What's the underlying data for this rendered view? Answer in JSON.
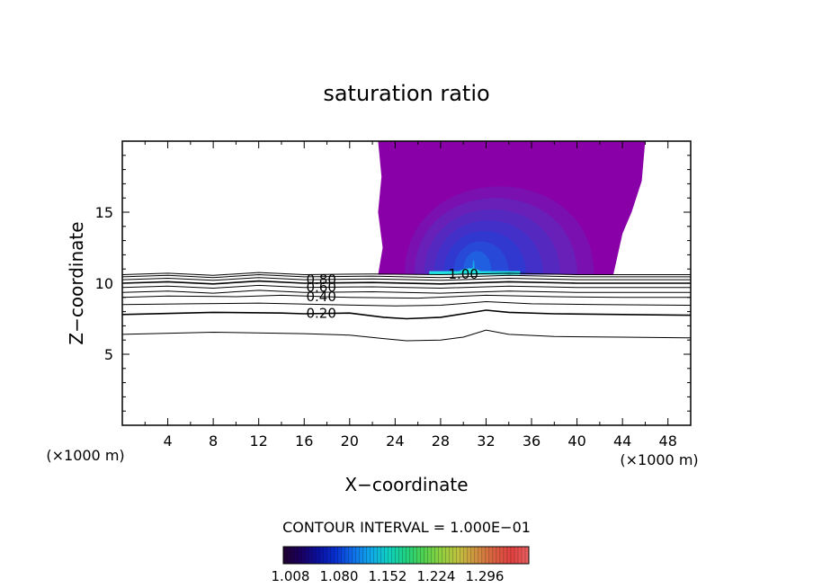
{
  "chart_data": {
    "type": "contour",
    "title": "saturation ratio",
    "xlabel": "X−coordinate",
    "ylabel": "Z−coordinate",
    "x_units_label": "(×1000 m)",
    "y_units_label": "(×1000 m)",
    "xlim": [
      0,
      50
    ],
    "ylim": [
      0,
      20
    ],
    "x_ticks": [
      4,
      8,
      12,
      16,
      20,
      24,
      28,
      32,
      36,
      40,
      44,
      48
    ],
    "y_ticks": [
      5,
      10,
      15
    ],
    "contour_interval_text": "CONTOUR INTERVAL = 1.000E−01",
    "contour_lines": [
      {
        "level": 0.1,
        "label": "",
        "points": [
          [
            0,
            6.4
          ],
          [
            8,
            6.55
          ],
          [
            16,
            6.45
          ],
          [
            20,
            6.35
          ],
          [
            23,
            6.1
          ],
          [
            25,
            5.95
          ],
          [
            28,
            6.0
          ],
          [
            30,
            6.2
          ],
          [
            32,
            6.7
          ],
          [
            34,
            6.4
          ],
          [
            38,
            6.25
          ],
          [
            44,
            6.2
          ],
          [
            50,
            6.15
          ]
        ]
      },
      {
        "level": 0.2,
        "label": "0.20",
        "points": [
          [
            0,
            7.8
          ],
          [
            8,
            7.95
          ],
          [
            14,
            7.9
          ],
          [
            16,
            7.85
          ],
          [
            20,
            7.9
          ],
          [
            23,
            7.6
          ],
          [
            25,
            7.5
          ],
          [
            28,
            7.6
          ],
          [
            30,
            7.85
          ],
          [
            32,
            8.1
          ],
          [
            34,
            7.95
          ],
          [
            38,
            7.85
          ],
          [
            44,
            7.8
          ],
          [
            50,
            7.75
          ]
        ]
      },
      {
        "level": 0.3,
        "label": "",
        "points": [
          [
            0,
            8.5
          ],
          [
            6,
            8.55
          ],
          [
            12,
            8.6
          ],
          [
            18,
            8.5
          ],
          [
            24,
            8.4
          ],
          [
            28,
            8.45
          ],
          [
            32,
            8.7
          ],
          [
            36,
            8.55
          ],
          [
            42,
            8.5
          ],
          [
            50,
            8.45
          ]
        ]
      },
      {
        "level": 0.4,
        "label": "0.40",
        "points": [
          [
            0,
            9.0
          ],
          [
            4,
            9.1
          ],
          [
            10,
            9.05
          ],
          [
            14,
            9.15
          ],
          [
            20,
            9.0
          ],
          [
            26,
            8.95
          ],
          [
            32,
            9.15
          ],
          [
            38,
            9.05
          ],
          [
            44,
            9.0
          ],
          [
            50,
            9.0
          ]
        ]
      },
      {
        "level": 0.5,
        "label": "",
        "points": [
          [
            0,
            9.35
          ],
          [
            4,
            9.45
          ],
          [
            8,
            9.3
          ],
          [
            12,
            9.5
          ],
          [
            16,
            9.35
          ],
          [
            22,
            9.4
          ],
          [
            28,
            9.3
          ],
          [
            34,
            9.45
          ],
          [
            40,
            9.35
          ],
          [
            50,
            9.35
          ]
        ]
      },
      {
        "level": 0.6,
        "label": "0.60",
        "points": [
          [
            0,
            9.7
          ],
          [
            4,
            9.8
          ],
          [
            8,
            9.65
          ],
          [
            12,
            9.85
          ],
          [
            16,
            9.7
          ],
          [
            22,
            9.75
          ],
          [
            28,
            9.65
          ],
          [
            34,
            9.8
          ],
          [
            40,
            9.7
          ],
          [
            50,
            9.7
          ]
        ]
      },
      {
        "level": 0.7,
        "label": "",
        "points": [
          [
            0,
            10.0
          ],
          [
            4,
            10.1
          ],
          [
            8,
            9.95
          ],
          [
            12,
            10.15
          ],
          [
            16,
            10.0
          ],
          [
            22,
            10.05
          ],
          [
            28,
            9.95
          ],
          [
            34,
            10.1
          ],
          [
            40,
            10.0
          ],
          [
            50,
            10.0
          ]
        ]
      },
      {
        "level": 0.8,
        "label": "0.80",
        "points": [
          [
            0,
            10.25
          ],
          [
            4,
            10.35
          ],
          [
            8,
            10.2
          ],
          [
            12,
            10.4
          ],
          [
            16,
            10.25
          ],
          [
            22,
            10.3
          ],
          [
            28,
            10.2
          ],
          [
            34,
            10.35
          ],
          [
            40,
            10.25
          ],
          [
            50,
            10.25
          ]
        ]
      },
      {
        "level": 0.9,
        "label": "",
        "points": [
          [
            0,
            10.45
          ],
          [
            4,
            10.55
          ],
          [
            8,
            10.4
          ],
          [
            12,
            10.6
          ],
          [
            16,
            10.45
          ],
          [
            22,
            10.5
          ],
          [
            28,
            10.4
          ],
          [
            34,
            10.55
          ],
          [
            40,
            10.45
          ],
          [
            50,
            10.45
          ]
        ]
      },
      {
        "level": 1.0,
        "label": "1.00",
        "points": [
          [
            0,
            10.6
          ],
          [
            4,
            10.7
          ],
          [
            8,
            10.55
          ],
          [
            12,
            10.75
          ],
          [
            16,
            10.6
          ],
          [
            22,
            10.65
          ],
          [
            28,
            10.6
          ],
          [
            34,
            10.7
          ],
          [
            40,
            10.6
          ],
          [
            50,
            10.6
          ]
        ]
      }
    ],
    "filled_region": {
      "x_range": [
        22.5,
        46
      ],
      "z_range": [
        10.6,
        20
      ],
      "colors": [
        "#8a00a8",
        "#7a10b0",
        "#6820b8",
        "#5528c0",
        "#4230c8",
        "#3038d0",
        "#2848d8",
        "#2060e0",
        "#18a8e8",
        "#20e0e0"
      ]
    },
    "colorbar": {
      "tick_labels": [
        "1.008",
        "1.080",
        "1.152",
        "1.224",
        "1.296"
      ],
      "colors": [
        "#200030",
        "#1a0060",
        "#0a10a0",
        "#0830d0",
        "#1070e8",
        "#10a8e8",
        "#10d0c0",
        "#20d080",
        "#50d050",
        "#90d040",
        "#c0c040",
        "#d09040",
        "#d86040",
        "#e04040",
        "#e86060"
      ]
    }
  }
}
